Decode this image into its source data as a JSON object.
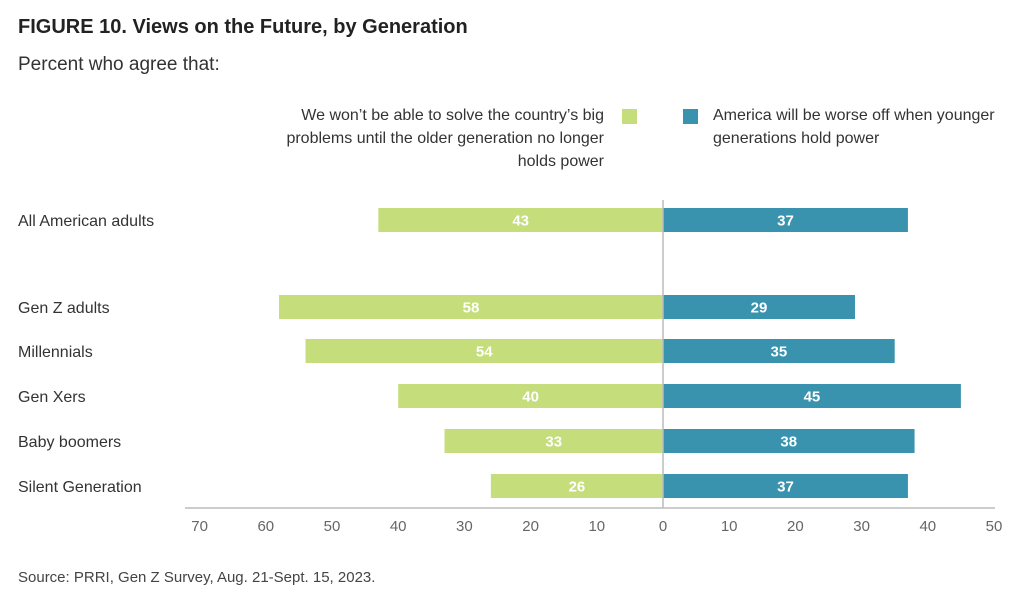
{
  "title": "FIGURE 10.  Views on the Future, by Generation",
  "subtitle": "Percent who agree that:",
  "source": "Source: PRRI, Gen Z Survey, Aug. 21-Sept. 15, 2023.",
  "colors": {
    "left": "#c5dd7a",
    "right": "#3a93ae",
    "axis": "#bbbbbb",
    "tick": "#666666"
  },
  "legend": {
    "left": "We won’t be able to solve the country’s big problems until the older generation no longer holds power",
    "right": "America will be worse off when younger generations hold power"
  },
  "chart_data": {
    "type": "bar",
    "orientation": "horizontal-diverging",
    "categories": [
      "All American adults",
      "Gen Z adults",
      "Millennials",
      "Gen Xers",
      "Baby boomers",
      "Silent Generation"
    ],
    "series": [
      {
        "name": "We won’t be able to solve the country’s big problems until the older generation no longer holds power",
        "direction": "left",
        "values": [
          43,
          58,
          54,
          40,
          33,
          26
        ]
      },
      {
        "name": "America will be worse off when younger generations hold power",
        "direction": "right",
        "values": [
          37,
          29,
          35,
          45,
          38,
          37
        ]
      }
    ],
    "xlim_left": [
      0,
      70
    ],
    "xlim_right": [
      0,
      50
    ],
    "ticks_left": [
      "70",
      "60",
      "50",
      "40",
      "30",
      "20",
      "10"
    ],
    "ticks_right": [
      "0",
      "10",
      "20",
      "30",
      "40",
      "50"
    ],
    "grid": false
  }
}
